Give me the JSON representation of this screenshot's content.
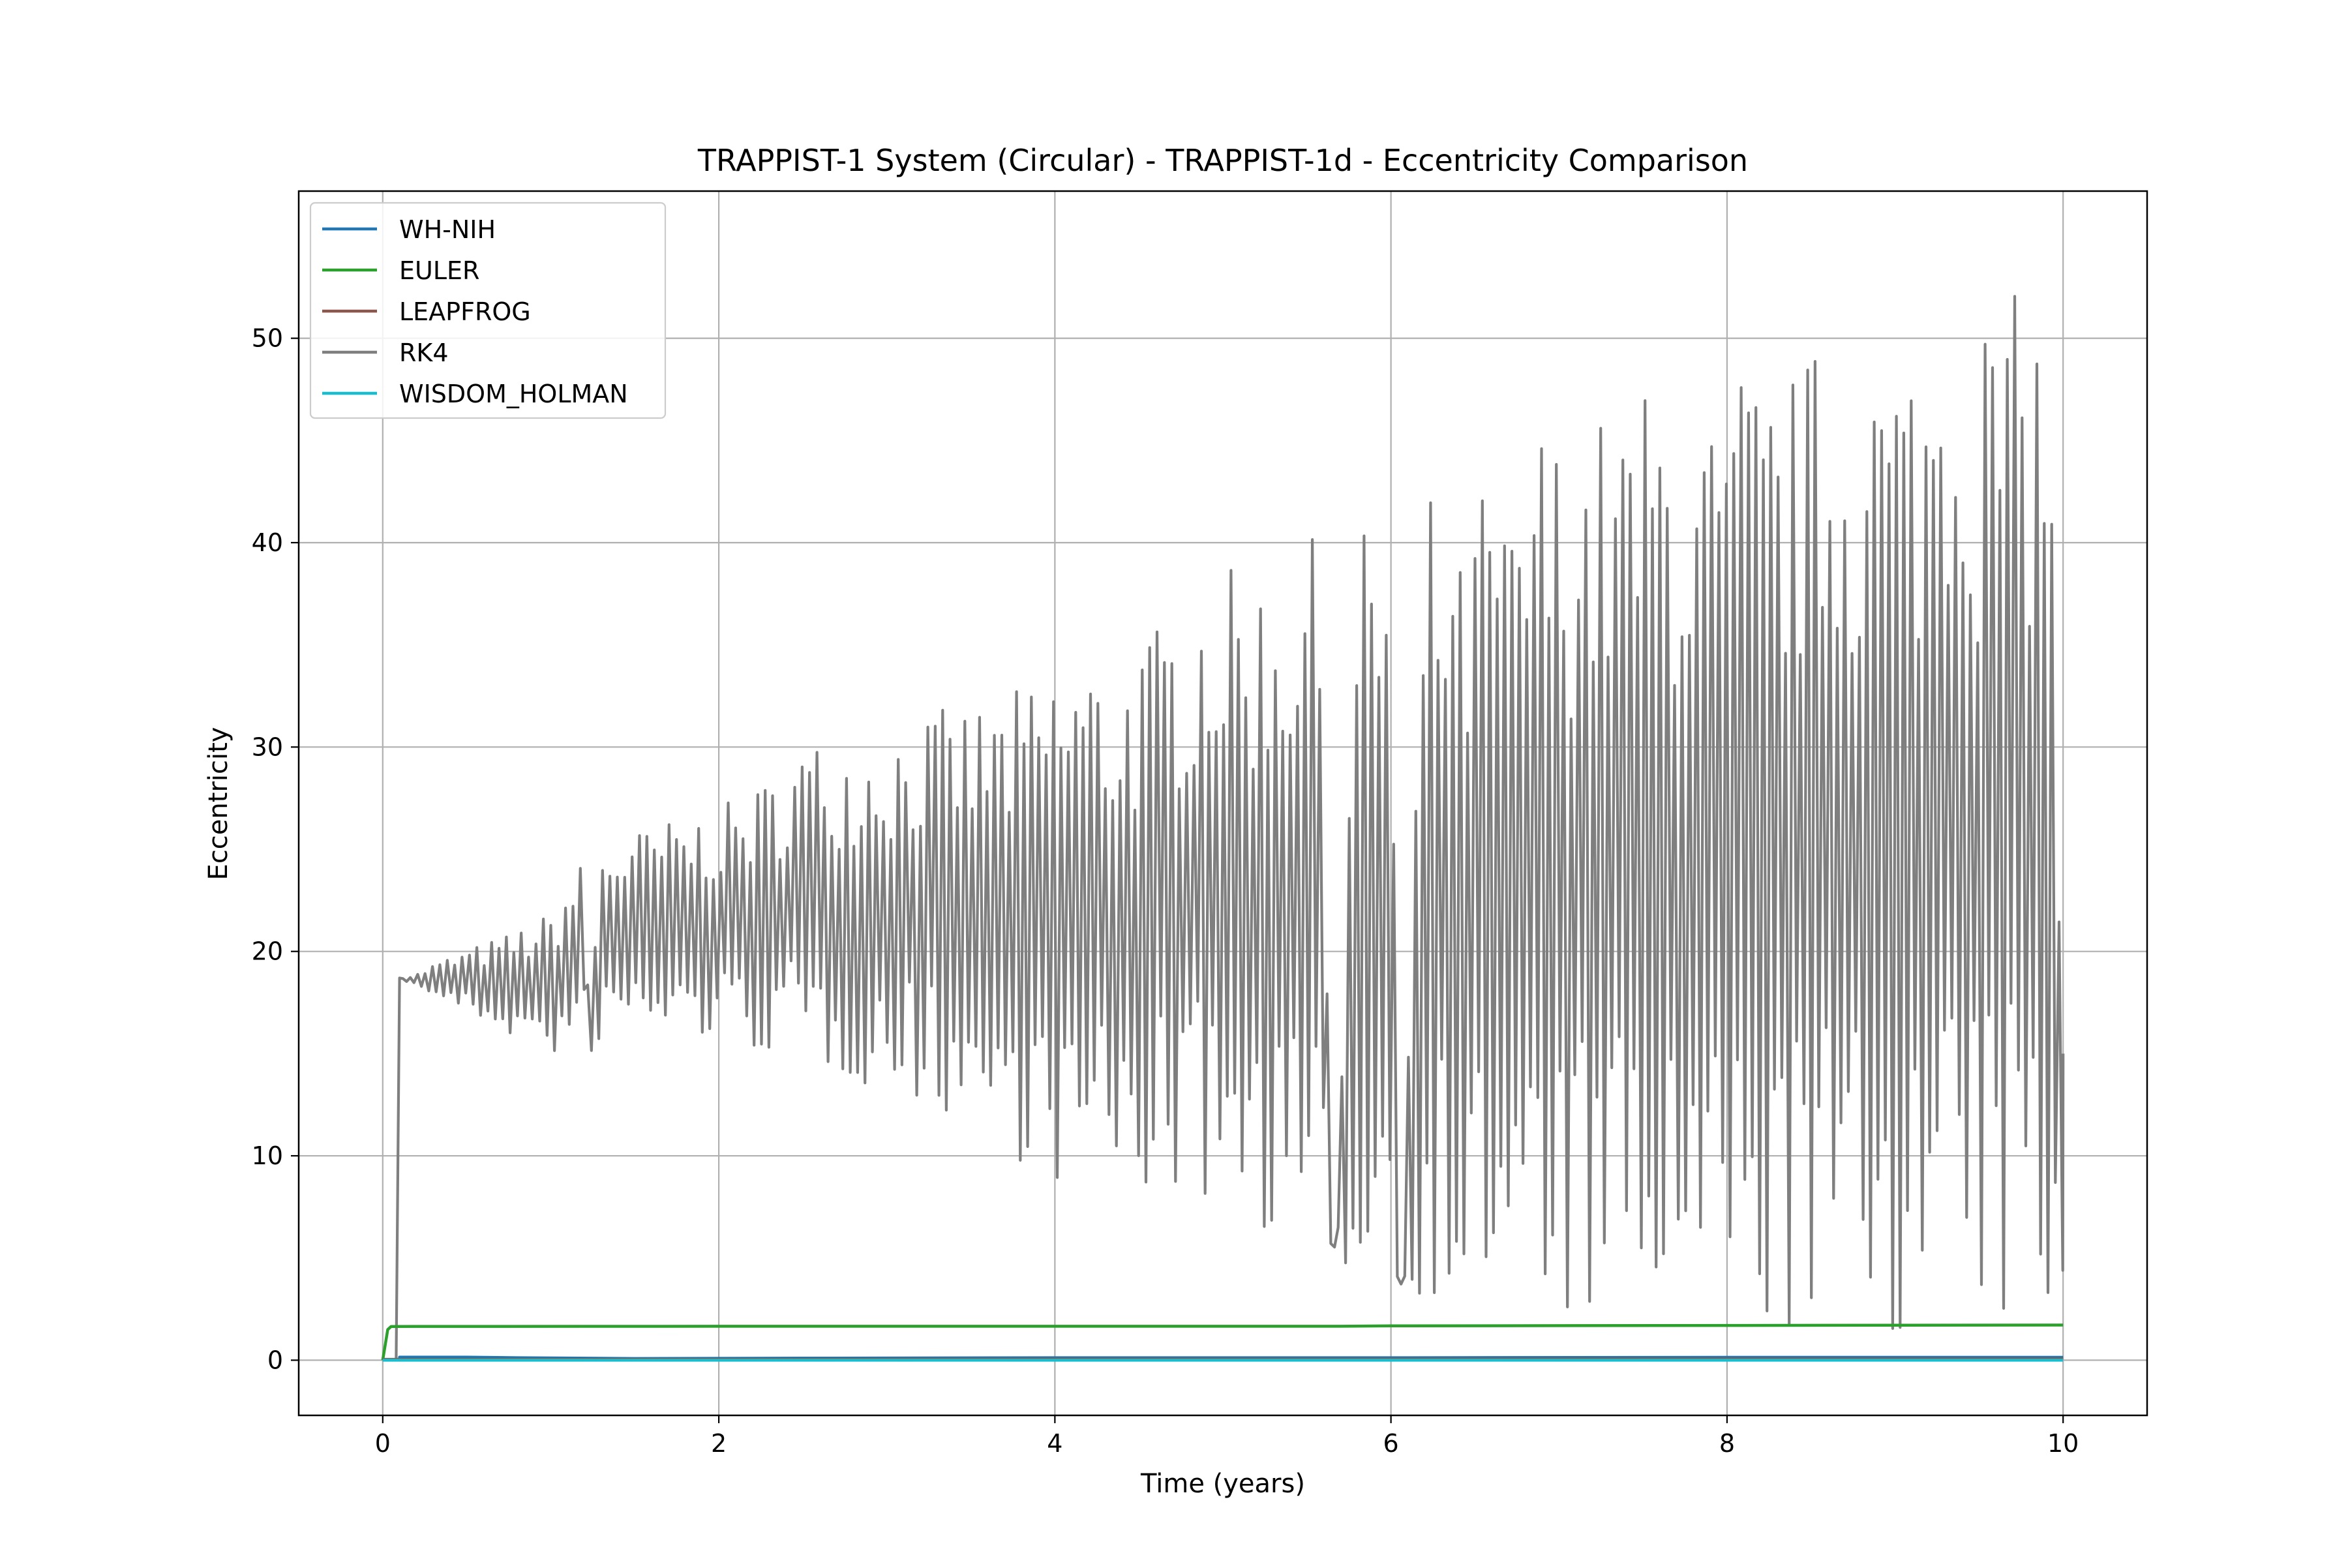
{
  "chart_data": {
    "type": "line",
    "title": "TRAPPIST-1 System (Circular) - TRAPPIST-1d - Eccentricity Comparison",
    "xlabel": "Time (years)",
    "ylabel": "Eccentricity",
    "xlim": [
      -0.5,
      10.5
    ],
    "ylim": [
      -2.7,
      57.2
    ],
    "xticks": [
      0,
      2,
      4,
      6,
      8,
      10
    ],
    "yticks": [
      0,
      10,
      20,
      30,
      40,
      50
    ],
    "grid": true,
    "legend_position": "upper-left",
    "series": [
      {
        "name": "WH-NIH",
        "color": "#1f77b4",
        "x": [
          0,
          0.1,
          0.1,
          0.5,
          0.8,
          1.5,
          2.5,
          4,
          6,
          8,
          10
        ],
        "y": [
          0.02,
          0.02,
          0.15,
          0.15,
          0.12,
          0.08,
          0.1,
          0.12,
          0.12,
          0.14,
          0.14
        ]
      },
      {
        "name": "EULER",
        "color": "#2ca02c",
        "x": [
          0,
          0.03,
          0.05,
          2,
          4,
          5.7,
          6,
          8,
          10
        ],
        "y": [
          0,
          1.5,
          1.65,
          1.66,
          1.66,
          1.66,
          1.68,
          1.7,
          1.72
        ]
      },
      {
        "name": "LEAPFROG",
        "color": "#8c564b",
        "x": [
          0,
          2,
          4,
          6,
          8,
          10
        ],
        "y": [
          0.04,
          0.04,
          0.05,
          0.05,
          0.06,
          0.06
        ]
      },
      {
        "name": "RK4",
        "color": "#7f7f7f",
        "x": [
          0,
          0.08,
          0.1,
          0.12,
          0.2,
          0.3,
          0.5,
          0.7,
          0.8,
          1.0,
          1.1,
          1.2,
          1.24,
          1.28,
          1.35,
          1.5,
          1.7,
          2.0,
          2.3,
          2.5,
          2.7,
          3.0,
          3.3,
          3.5,
          3.7,
          3.9,
          4.0,
          4.2,
          4.3,
          4.5,
          4.7,
          4.9,
          5.1,
          5.3,
          5.5,
          5.6,
          5.65,
          5.8,
          6.0,
          6.05,
          6.2,
          6.3,
          6.4,
          6.6,
          6.7,
          6.85,
          7.0,
          7.2,
          7.4,
          7.6,
          7.8,
          8.0,
          8.1,
          8.3,
          8.5,
          8.7,
          8.9,
          9.0,
          9.2,
          9.3,
          9.4,
          9.5,
          9.6,
          9.7,
          9.8,
          9.9,
          9.95,
          10.0
        ],
        "y": [
          0,
          0,
          18.7,
          18.7,
          18.9,
          19.4,
          20.1,
          20.7,
          21.1,
          21.9,
          23.5,
          24.6,
          13.7,
          25.5,
          25.6,
          25.9,
          26.4,
          27.0,
          28.5,
          30.4,
          30.3,
          31.0,
          31.8,
          32.1,
          32.6,
          33.2,
          34.2,
          34.8,
          33.8,
          35.2,
          36.7,
          39.0,
          38.6,
          38.9,
          40.8,
          39.0,
          2.2,
          40.5,
          41.9,
          1.0,
          42.5,
          42.5,
          38.7,
          44.9,
          40.4,
          46.3,
          45.5,
          46.2,
          46.9,
          48.2,
          46.3,
          45.9,
          49.4,
          47.4,
          49.6,
          49.2,
          50.4,
          49.8,
          50.4,
          54.3,
          52.4,
          51.4,
          52.7,
          52.2,
          51.9,
          54.1,
          37.5,
          15.0
        ],
        "lower_envelope": {
          "x": [
            0.1,
            0.5,
            1.0,
            1.5,
            2.0,
            2.5,
            3.0,
            3.5,
            4.0,
            4.5,
            5.0,
            5.5,
            6.0,
            6.5,
            7.0,
            7.5,
            8.0,
            8.5,
            9.0,
            9.5,
            10.0
          ],
          "y": [
            18.7,
            17.0,
            14.8,
            16.0,
            15.5,
            14.5,
            13.0,
            11.5,
            8.5,
            8.0,
            7.5,
            5.0,
            3.5,
            2.5,
            1.5,
            1.2,
            1.0,
            1.0,
            1.0,
            1.0,
            1.0
          ]
        }
      },
      {
        "name": "WISDOM_HOLMAN",
        "color": "#17becf",
        "x": [
          0,
          2,
          4,
          6,
          8,
          10
        ],
        "y": [
          0,
          0,
          0,
          0,
          0,
          0
        ]
      }
    ]
  }
}
